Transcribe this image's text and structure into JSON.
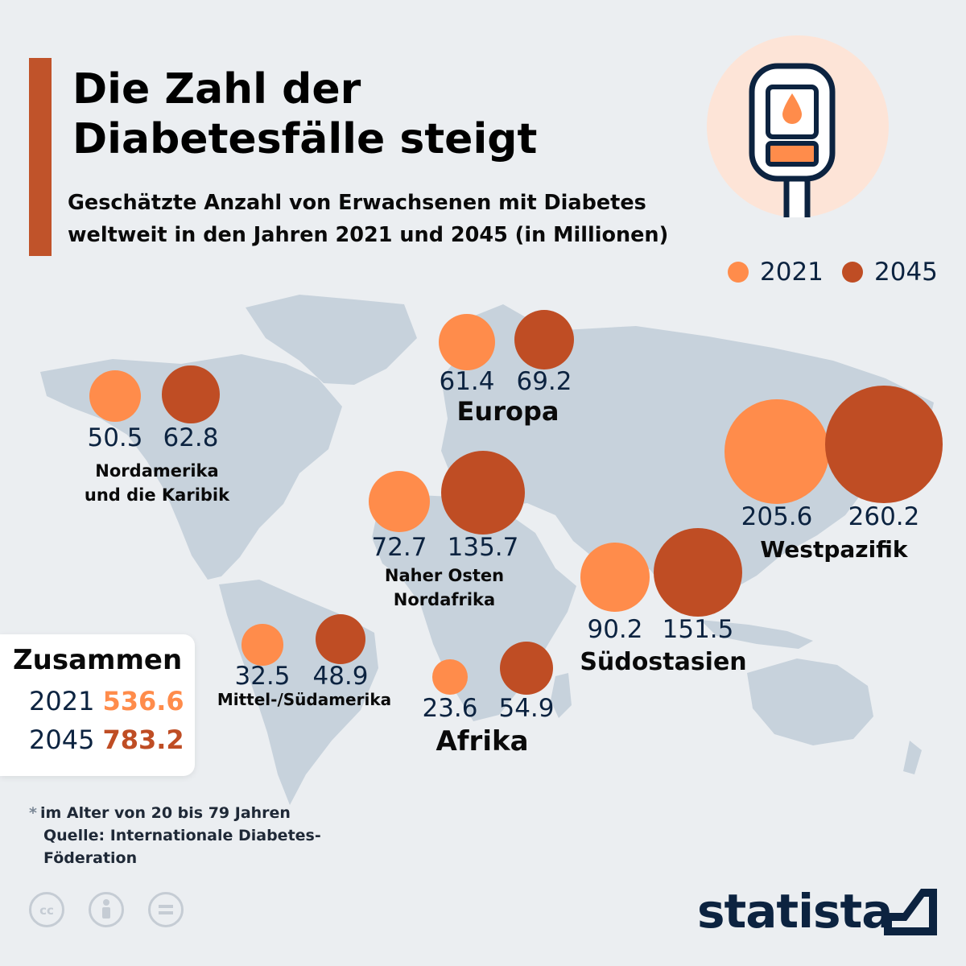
{
  "title": "Die Zahl der Diabetesfälle steigt",
  "subtitle": "Geschätzte Anzahl von Erwachsenen mit Diabetes weltweit in den Jahren 2021 und 2045 (in Millionen)",
  "colors": {
    "c2021": "#ff8c4b",
    "c2045": "#bf4d24",
    "accent": "#c0532a",
    "map": "#c7d2dc"
  },
  "legend": [
    {
      "label": "2021"
    },
    {
      "label": "2045"
    }
  ],
  "chart_data": {
    "type": "scatter",
    "title": "Die Zahl der Diabetesfälle steigt",
    "unit": "Millionen",
    "series": [
      {
        "name": "2021"
      },
      {
        "name": "2045"
      }
    ],
    "regions": [
      {
        "name": "Nordamerika und die Karibik",
        "v2021": 50.5,
        "v2045": 62.8
      },
      {
        "name": "Europa",
        "v2021": 61.4,
        "v2045": 69.2
      },
      {
        "name": "Westpazifik",
        "v2021": 205.6,
        "v2045": 260.2
      },
      {
        "name": "Naher Osten Nordafrika",
        "v2021": 72.7,
        "v2045": 135.7
      },
      {
        "name": "Südostasien",
        "v2021": 90.2,
        "v2045": 151.5
      },
      {
        "name": "Mittel-/Südamerika",
        "v2021": 32.5,
        "v2045": 48.9
      },
      {
        "name": "Afrika",
        "v2021": 23.6,
        "v2045": 54.9
      }
    ]
  },
  "values_text": {
    "na_2021": "50.5",
    "na_2045": "62.8",
    "eu_2021": "61.4",
    "eu_2045": "69.2",
    "wp_2021": "205.6",
    "wp_2045": "260.2",
    "me_2021": "72.7",
    "me_2045": "135.7",
    "sea_2021": "90.2",
    "sea_2045": "151.5",
    "sa_2021": "32.5",
    "sa_2045": "48.9",
    "af_2021": "23.6",
    "af_2045": "54.9"
  },
  "region_labels": {
    "na_line1": "Nordamerika",
    "na_line2": "und die Karibik",
    "eu": "Europa",
    "wp": "Westpazifik",
    "me_line1": "Naher Osten",
    "me_line2": "Nordafrika",
    "sea": "Südostasien",
    "sa": "Mittel-/Südamerika",
    "af": "Afrika"
  },
  "totals": {
    "heading": "Zusammen",
    "year_2021": "2021",
    "value_2021": "536.6",
    "year_2045": "2045",
    "value_2045": "783.2"
  },
  "footnote": {
    "star": "*",
    "line1": "im Alter von 20 bis 79 Jahren",
    "line2": "Quelle: Internationale Diabetes-",
    "line3": "Föderation"
  },
  "license_icons": [
    "cc-icon",
    "attribution-icon",
    "noderivs-icon"
  ],
  "brand": "statista"
}
